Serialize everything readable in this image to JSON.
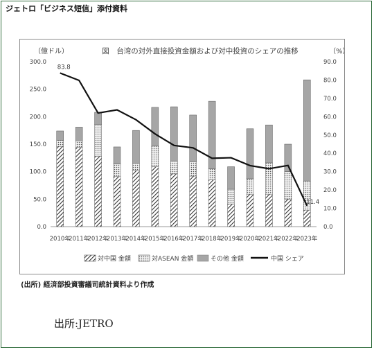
{
  "header": {
    "text": "ジェトロ「ビジネス短信」添付資料"
  },
  "chart_data": {
    "type": "bar",
    "title": "図　台湾の対外直接投資金額および対中投資のシェアの推移",
    "ylabel_left": "（億ドル）",
    "ylabel_right": "（%）",
    "categories": [
      "2010年",
      "2011年",
      "2012年",
      "2013年",
      "2014年",
      "2015年",
      "2016年",
      "2017年",
      "2018年",
      "2019年",
      "2020年",
      "2021年",
      "2022年",
      "2023年"
    ],
    "series": [
      {
        "name": "対中国 金額",
        "values": [
          146,
          144,
          128,
          91,
          102,
          109,
          96,
          92,
          85,
          41,
          59,
          59,
          50,
          30
        ]
      },
      {
        "name": "対ASEAN 金額",
        "values": [
          11,
          12,
          58,
          23,
          13,
          38,
          23,
          26,
          20,
          27,
          28,
          57,
          50,
          53
        ]
      },
      {
        "name": "その他 金額",
        "values": [
          17,
          25,
          22,
          31,
          60,
          70,
          99,
          85,
          123,
          41,
          91,
          69,
          50,
          184
        ]
      },
      {
        "name": "中国 シェア",
        "axis": "right",
        "values": [
          83.8,
          79.8,
          62.0,
          63.7,
          58.3,
          50.6,
          44.3,
          43.0,
          37.3,
          37.6,
          33.3,
          31.6,
          33.4,
          11.4
        ]
      }
    ],
    "ylim_left": [
      0,
      300
    ],
    "yticks_left": [
      "0.0",
      "50.0",
      "100.0",
      "150.0",
      "200.0",
      "250.0",
      "300.0"
    ],
    "ylim_right": [
      0,
      90
    ],
    "yticks_right": [
      "0.0",
      "10.0",
      "20.0",
      "30.0",
      "40.0",
      "50.0",
      "60.0",
      "70.0",
      "80.0",
      "90.0"
    ],
    "annotations": [
      "83.8",
      "11.4"
    ],
    "legend_position": "bottom",
    "grid": false,
    "colors": {
      "china_stroke": "#333333",
      "asean_dot": "#555555",
      "other_fill": "#a6a6a6",
      "line": "#111111"
    }
  },
  "source_note": "(出所) 経済部投資審議司統計資料より作成",
  "footer": {
    "text": "出所:JETRO"
  }
}
